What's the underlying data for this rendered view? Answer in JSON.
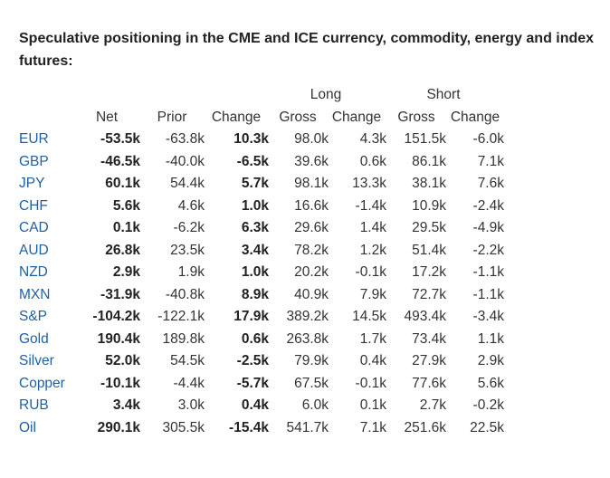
{
  "title": "Speculative positioning in the CME and ICE currency, commodity, energy and index futures:",
  "group_headers": {
    "long": "Long",
    "short": "Short"
  },
  "columns": [
    "Net",
    "Prior",
    "Change",
    "Gross",
    "Change",
    "Gross",
    "Change"
  ],
  "rows": [
    {
      "label": "EUR",
      "net": "-53.5k",
      "prior": "-63.8k",
      "change": "10.3k",
      "long_gross": "98.0k",
      "long_change": "4.3k",
      "short_gross": "151.5k",
      "short_change": "-6.0k"
    },
    {
      "label": "GBP",
      "net": "-46.5k",
      "prior": "-40.0k",
      "change": "-6.5k",
      "long_gross": "39.6k",
      "long_change": "0.6k",
      "short_gross": "86.1k",
      "short_change": "7.1k"
    },
    {
      "label": "JPY",
      "net": "60.1k",
      "prior": "54.4k",
      "change": "5.7k",
      "long_gross": "98.1k",
      "long_change": "13.3k",
      "short_gross": "38.1k",
      "short_change": "7.6k"
    },
    {
      "label": "CHF",
      "net": "5.6k",
      "prior": "4.6k",
      "change": "1.0k",
      "long_gross": "16.6k",
      "long_change": "-1.4k",
      "short_gross": "10.9k",
      "short_change": "-2.4k"
    },
    {
      "label": "CAD",
      "net": "0.1k",
      "prior": "-6.2k",
      "change": "6.3k",
      "long_gross": "29.6k",
      "long_change": "1.4k",
      "short_gross": "29.5k",
      "short_change": "-4.9k"
    },
    {
      "label": "AUD",
      "net": "26.8k",
      "prior": "23.5k",
      "change": "3.4k",
      "long_gross": "78.2k",
      "long_change": "1.2k",
      "short_gross": "51.4k",
      "short_change": "-2.2k"
    },
    {
      "label": "NZD",
      "net": "2.9k",
      "prior": "1.9k",
      "change": "1.0k",
      "long_gross": "20.2k",
      "long_change": "-0.1k",
      "short_gross": "17.2k",
      "short_change": "-1.1k"
    },
    {
      "label": "MXN",
      "net": "-31.9k",
      "prior": "-40.8k",
      "change": "8.9k",
      "long_gross": "40.9k",
      "long_change": "7.9k",
      "short_gross": "72.7k",
      "short_change": "-1.1k"
    },
    {
      "label": "S&P",
      "net": "-104.2k",
      "prior": "-122.1k",
      "change": "17.9k",
      "long_gross": "389.2k",
      "long_change": "14.5k",
      "short_gross": "493.4k",
      "short_change": "-3.4k"
    },
    {
      "label": "Gold",
      "net": "190.4k",
      "prior": "189.8k",
      "change": "0.6k",
      "long_gross": "263.8k",
      "long_change": "1.7k",
      "short_gross": "73.4k",
      "short_change": "1.1k"
    },
    {
      "label": "Silver",
      "net": "52.0k",
      "prior": "54.5k",
      "change": "-2.5k",
      "long_gross": "79.9k",
      "long_change": "0.4k",
      "short_gross": "27.9k",
      "short_change": "2.9k"
    },
    {
      "label": "Copper",
      "net": "-10.1k",
      "prior": "-4.4k",
      "change": "-5.7k",
      "long_gross": "67.5k",
      "long_change": "-0.1k",
      "short_gross": "77.6k",
      "short_change": "5.6k"
    },
    {
      "label": "RUB",
      "net": "3.4k",
      "prior": "3.0k",
      "change": "0.4k",
      "long_gross": "6.0k",
      "long_change": "0.1k",
      "short_gross": "2.7k",
      "short_change": "-0.2k"
    },
    {
      "label": "Oil",
      "net": "290.1k",
      "prior": "305.5k",
      "change": "-15.4k",
      "long_gross": "541.7k",
      "long_change": "7.1k",
      "short_gross": "251.6k",
      "short_change": "22.5k"
    }
  ]
}
